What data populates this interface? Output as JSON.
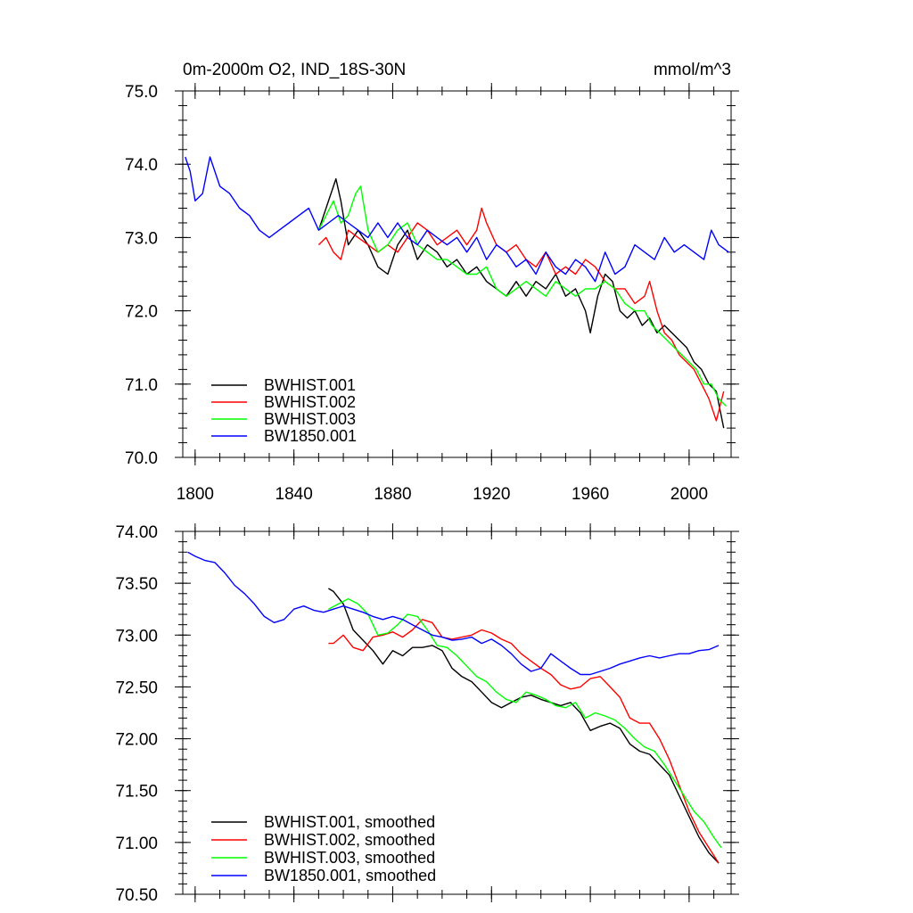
{
  "chart_data": [
    {
      "type": "line",
      "title": "0m-2000m O2, IND_18S-30N",
      "units": "mmol/m^3",
      "xlabel": "",
      "ylabel": "",
      "xlim": [
        1795,
        2017
      ],
      "ylim": [
        70.0,
        75.0
      ],
      "x_ticks": [
        1800,
        1840,
        1880,
        1920,
        1960,
        2000
      ],
      "x_tick_labels": [
        "1800",
        "1840",
        "1880",
        "1920",
        "1960",
        "2000"
      ],
      "y_ticks": [
        70.0,
        71.0,
        72.0,
        73.0,
        74.0,
        75.0
      ],
      "y_tick_labels": [
        "70.0",
        "71.0",
        "72.0",
        "73.0",
        "74.0",
        "75.0"
      ],
      "grid": false,
      "legend_position": "bottom-left",
      "series": [
        {
          "name": "BWHIST.001",
          "color": "#000000",
          "x": [
            1850,
            1853,
            1856,
            1857,
            1859,
            1862,
            1866,
            1870,
            1874,
            1878,
            1882,
            1886,
            1890,
            1894,
            1898,
            1902,
            1906,
            1910,
            1914,
            1918,
            1922,
            1926,
            1930,
            1934,
            1938,
            1942,
            1946,
            1950,
            1954,
            1958,
            1960,
            1963,
            1966,
            1969,
            1972,
            1975,
            1978,
            1981,
            1984,
            1987,
            1990,
            1993,
            1996,
            1999,
            2002,
            2005,
            2008,
            2011,
            2014
          ],
          "y": [
            73.1,
            73.4,
            73.7,
            73.8,
            73.5,
            72.9,
            73.1,
            72.9,
            72.6,
            72.5,
            72.9,
            73.1,
            72.7,
            72.9,
            72.8,
            72.6,
            72.7,
            72.5,
            72.6,
            72.4,
            72.3,
            72.2,
            72.4,
            72.2,
            72.4,
            72.3,
            72.5,
            72.2,
            72.3,
            72.0,
            71.7,
            72.2,
            72.5,
            72.4,
            72.0,
            71.9,
            72.0,
            71.8,
            71.9,
            71.7,
            71.8,
            71.7,
            71.6,
            71.5,
            71.3,
            71.2,
            71.0,
            70.9,
            70.4
          ]
        },
        {
          "name": "BWHIST.002",
          "color": "#ff0000",
          "x": [
            1850,
            1853,
            1856,
            1859,
            1862,
            1866,
            1870,
            1874,
            1878,
            1882,
            1886,
            1890,
            1894,
            1898,
            1902,
            1906,
            1910,
            1914,
            1916,
            1918,
            1922,
            1926,
            1930,
            1934,
            1938,
            1942,
            1946,
            1950,
            1954,
            1958,
            1962,
            1966,
            1970,
            1974,
            1978,
            1982,
            1984,
            1987,
            1990,
            1993,
            1996,
            1999,
            2002,
            2005,
            2008,
            2011,
            2014
          ],
          "y": [
            72.9,
            73.0,
            72.8,
            72.7,
            73.1,
            73.0,
            72.9,
            72.8,
            72.9,
            72.8,
            73.0,
            73.2,
            73.1,
            72.9,
            73.0,
            73.1,
            72.9,
            73.1,
            73.4,
            73.2,
            72.9,
            72.8,
            72.9,
            72.7,
            72.6,
            72.8,
            72.5,
            72.6,
            72.5,
            72.7,
            72.6,
            72.4,
            72.3,
            72.3,
            72.1,
            72.2,
            72.4,
            72.0,
            71.7,
            71.6,
            71.4,
            71.3,
            71.2,
            71.0,
            70.8,
            70.5,
            70.9
          ]
        },
        {
          "name": "BWHIST.003",
          "color": "#00ff00",
          "x": [
            1850,
            1853,
            1856,
            1859,
            1862,
            1865,
            1867,
            1870,
            1874,
            1878,
            1882,
            1886,
            1890,
            1894,
            1898,
            1902,
            1906,
            1910,
            1914,
            1918,
            1922,
            1926,
            1930,
            1934,
            1938,
            1942,
            1946,
            1950,
            1954,
            1958,
            1962,
            1966,
            1970,
            1974,
            1978,
            1982,
            1985,
            1988,
            1991,
            1994,
            1997,
            2000,
            2003,
            2006,
            2009,
            2012,
            2015
          ],
          "y": [
            73.1,
            73.3,
            73.5,
            73.2,
            73.3,
            73.6,
            73.7,
            73.1,
            72.8,
            72.9,
            73.1,
            73.2,
            72.9,
            72.8,
            72.7,
            72.7,
            72.6,
            72.5,
            72.5,
            72.6,
            72.3,
            72.2,
            72.3,
            72.4,
            72.3,
            72.2,
            72.4,
            72.3,
            72.2,
            72.3,
            72.3,
            72.4,
            72.3,
            72.1,
            72.0,
            72.0,
            71.8,
            71.7,
            71.6,
            71.5,
            71.4,
            71.3,
            71.2,
            71.0,
            71.0,
            70.8,
            70.7
          ]
        },
        {
          "name": "BW1850.001",
          "color": "#0000ff",
          "x": [
            1796,
            1798,
            1800,
            1803,
            1806,
            1810,
            1814,
            1818,
            1822,
            1826,
            1830,
            1834,
            1838,
            1842,
            1846,
            1850,
            1854,
            1858,
            1862,
            1866,
            1870,
            1874,
            1878,
            1882,
            1886,
            1890,
            1894,
            1898,
            1902,
            1906,
            1910,
            1914,
            1918,
            1922,
            1926,
            1930,
            1934,
            1938,
            1942,
            1946,
            1950,
            1954,
            1958,
            1962,
            1966,
            1970,
            1974,
            1978,
            1982,
            1986,
            1990,
            1994,
            1998,
            2002,
            2006,
            2009,
            2012,
            2016
          ],
          "y": [
            74.1,
            73.9,
            73.5,
            73.6,
            74.1,
            73.7,
            73.6,
            73.4,
            73.3,
            73.1,
            73.0,
            73.1,
            73.2,
            73.3,
            73.4,
            73.1,
            73.2,
            73.3,
            73.2,
            73.1,
            73.0,
            73.2,
            73.0,
            73.2,
            73.0,
            72.9,
            73.1,
            73.0,
            72.9,
            73.0,
            72.8,
            73.0,
            72.7,
            72.9,
            72.8,
            72.6,
            72.7,
            72.5,
            72.8,
            72.6,
            72.5,
            72.7,
            72.6,
            72.4,
            72.8,
            72.5,
            72.6,
            72.9,
            72.8,
            72.7,
            73.0,
            72.8,
            72.9,
            72.8,
            72.7,
            73.1,
            72.9,
            72.8
          ]
        }
      ]
    },
    {
      "type": "line",
      "title": "",
      "xlabel": "",
      "ylabel": "",
      "xlim": [
        1795,
        2017
      ],
      "ylim": [
        70.5,
        74.0
      ],
      "x_ticks": [
        1800,
        1840,
        1880,
        1920,
        1960,
        2000
      ],
      "x_tick_labels": [],
      "y_ticks": [
        70.5,
        71.0,
        71.5,
        72.0,
        72.5,
        73.0,
        73.5,
        74.0
      ],
      "y_tick_labels": [
        "70.50",
        "71.00",
        "71.50",
        "72.00",
        "72.50",
        "73.00",
        "73.50",
        "74.00"
      ],
      "grid": false,
      "legend_position": "bottom-left",
      "series": [
        {
          "name": "BWHIST.001, smoothed",
          "color": "#000000",
          "x": [
            1854,
            1856,
            1860,
            1864,
            1868,
            1872,
            1876,
            1880,
            1884,
            1888,
            1892,
            1896,
            1900,
            1904,
            1908,
            1912,
            1916,
            1920,
            1924,
            1928,
            1932,
            1936,
            1940,
            1944,
            1948,
            1952,
            1956,
            1960,
            1964,
            1968,
            1972,
            1976,
            1980,
            1984,
            1988,
            1992,
            1996,
            2000,
            2004,
            2008,
            2012
          ],
          "y": [
            73.45,
            73.42,
            73.3,
            73.05,
            72.95,
            72.85,
            72.72,
            72.85,
            72.8,
            72.88,
            72.88,
            72.9,
            72.85,
            72.68,
            72.6,
            72.55,
            72.45,
            72.35,
            72.3,
            72.35,
            72.4,
            72.42,
            72.38,
            72.35,
            72.32,
            72.35,
            72.25,
            72.08,
            72.12,
            72.15,
            72.1,
            71.95,
            71.88,
            71.85,
            71.75,
            71.65,
            71.45,
            71.25,
            71.05,
            70.9,
            70.8
          ]
        },
        {
          "name": "BWHIST.002, smoothed",
          "color": "#ff0000",
          "x": [
            1854,
            1856,
            1860,
            1864,
            1868,
            1872,
            1876,
            1880,
            1884,
            1888,
            1892,
            1896,
            1900,
            1904,
            1908,
            1912,
            1916,
            1920,
            1924,
            1928,
            1932,
            1936,
            1940,
            1944,
            1948,
            1952,
            1956,
            1960,
            1964,
            1968,
            1972,
            1976,
            1980,
            1984,
            1988,
            1992,
            1996,
            2000,
            2004,
            2008,
            2012
          ],
          "y": [
            72.92,
            72.92,
            73.0,
            72.88,
            72.85,
            72.98,
            73.0,
            73.03,
            72.98,
            73.05,
            73.15,
            73.12,
            72.98,
            72.96,
            72.98,
            73.0,
            73.05,
            73.02,
            72.96,
            72.92,
            72.82,
            72.75,
            72.68,
            72.62,
            72.52,
            72.48,
            72.5,
            72.58,
            72.6,
            72.5,
            72.4,
            72.2,
            72.15,
            72.15,
            72.0,
            71.8,
            71.55,
            71.3,
            71.1,
            70.95,
            70.8
          ]
        },
        {
          "name": "BWHIST.003, smoothed",
          "color": "#00ff00",
          "x": [
            1854,
            1858,
            1862,
            1866,
            1870,
            1874,
            1878,
            1882,
            1886,
            1890,
            1894,
            1898,
            1902,
            1906,
            1910,
            1914,
            1918,
            1922,
            1926,
            1930,
            1934,
            1938,
            1942,
            1946,
            1950,
            1954,
            1958,
            1962,
            1966,
            1970,
            1974,
            1978,
            1982,
            1986,
            1990,
            1994,
            1998,
            2002,
            2006,
            2010,
            2013
          ],
          "y": [
            73.25,
            73.3,
            73.35,
            73.3,
            73.2,
            73.0,
            73.02,
            73.1,
            73.2,
            73.18,
            73.05,
            72.9,
            72.88,
            72.8,
            72.7,
            72.6,
            72.55,
            72.45,
            72.38,
            72.35,
            72.45,
            72.42,
            72.38,
            72.32,
            72.3,
            72.35,
            72.2,
            72.25,
            72.22,
            72.18,
            72.1,
            72.0,
            71.92,
            71.88,
            71.75,
            71.6,
            71.45,
            71.3,
            71.2,
            71.05,
            70.95
          ]
        },
        {
          "name": "BW1850.001, smoothed",
          "color": "#0000ff",
          "x": [
            1797,
            1800,
            1804,
            1808,
            1812,
            1816,
            1820,
            1824,
            1828,
            1832,
            1836,
            1840,
            1844,
            1848,
            1852,
            1856,
            1860,
            1864,
            1868,
            1872,
            1876,
            1880,
            1884,
            1888,
            1892,
            1896,
            1900,
            1904,
            1908,
            1912,
            1916,
            1920,
            1924,
            1928,
            1932,
            1936,
            1940,
            1944,
            1948,
            1952,
            1956,
            1960,
            1964,
            1968,
            1972,
            1976,
            1980,
            1984,
            1988,
            1992,
            1996,
            2000,
            2004,
            2008,
            2012
          ],
          "y": [
            73.8,
            73.76,
            73.72,
            73.7,
            73.6,
            73.48,
            73.4,
            73.3,
            73.18,
            73.12,
            73.15,
            73.25,
            73.28,
            73.24,
            73.22,
            73.25,
            73.28,
            73.25,
            73.22,
            73.18,
            73.15,
            73.18,
            73.15,
            73.1,
            73.05,
            73.0,
            72.98,
            72.95,
            72.96,
            72.98,
            72.92,
            72.96,
            72.9,
            72.82,
            72.72,
            72.65,
            72.68,
            72.82,
            72.75,
            72.68,
            72.62,
            72.62,
            72.65,
            72.68,
            72.72,
            72.75,
            72.78,
            72.8,
            72.78,
            72.8,
            72.82,
            72.82,
            72.85,
            72.86,
            72.9
          ]
        }
      ]
    }
  ]
}
